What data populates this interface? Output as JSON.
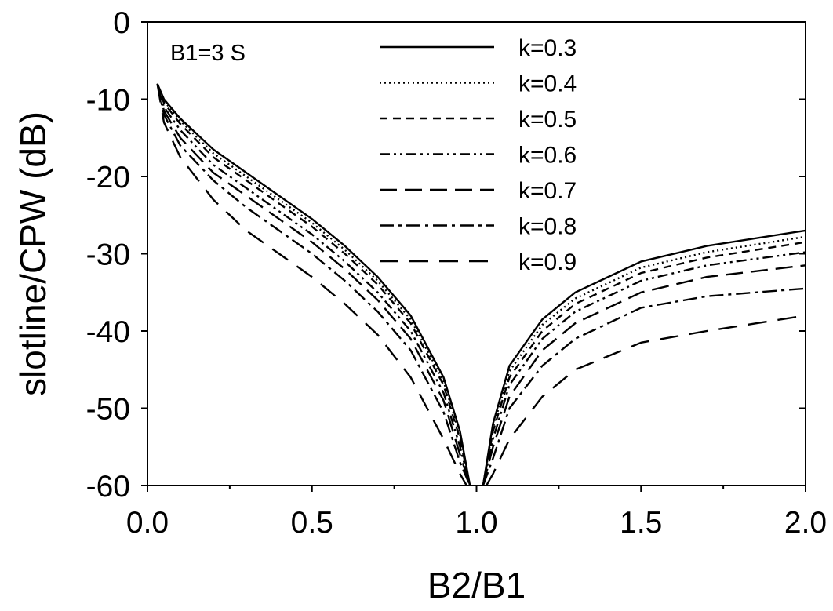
{
  "chart_data": {
    "type": "line",
    "title": "",
    "xlabel": "B2/B1",
    "ylabel": "slotline/CPW (dB)",
    "xlim": [
      0.0,
      2.0
    ],
    "ylim": [
      -60,
      0
    ],
    "xticks": [
      "0.0",
      "0.5",
      "1.0",
      "1.5",
      "2.0"
    ],
    "yticks": [
      "0",
      "-10",
      "-20",
      "-30",
      "-40",
      "-50",
      "-60"
    ],
    "grid": false,
    "legend_position": "top-center",
    "annotation": "B1=3 S",
    "series": [
      {
        "name": "k=0.3",
        "dash": "solid",
        "x": [
          0.03,
          0.05,
          0.1,
          0.2,
          0.3,
          0.4,
          0.5,
          0.6,
          0.7,
          0.8,
          0.9,
          0.95,
          0.98,
          1.02,
          1.05,
          1.1,
          1.2,
          1.3,
          1.5,
          1.7,
          2.0
        ],
        "y": [
          -8,
          -10,
          -12.5,
          -16.5,
          -19.5,
          -22.5,
          -25.5,
          -29,
          -33,
          -38,
          -46,
          -53,
          -60,
          -60,
          -52,
          -44.5,
          -38.5,
          -35,
          -31,
          -29,
          -27
        ]
      },
      {
        "name": "k=0.4",
        "dash": "dotted",
        "x": [
          0.03,
          0.05,
          0.1,
          0.2,
          0.3,
          0.4,
          0.5,
          0.6,
          0.7,
          0.8,
          0.9,
          0.95,
          0.98,
          1.02,
          1.05,
          1.1,
          1.2,
          1.3,
          1.5,
          1.7,
          2.0
        ],
        "y": [
          -8,
          -10.2,
          -12.8,
          -17,
          -20,
          -23,
          -26,
          -29.5,
          -33.5,
          -38.5,
          -46.5,
          -53.5,
          -60,
          -60,
          -52.5,
          -45.2,
          -39.2,
          -35.8,
          -31.8,
          -29.8,
          -27.8
        ]
      },
      {
        "name": "k=0.5",
        "dash": "short-dash",
        "x": [
          0.03,
          0.05,
          0.1,
          0.2,
          0.3,
          0.4,
          0.5,
          0.6,
          0.7,
          0.8,
          0.9,
          0.95,
          0.98,
          1.02,
          1.05,
          1.1,
          1.2,
          1.3,
          1.5,
          1.7,
          2.0
        ],
        "y": [
          -8,
          -10.5,
          -13.2,
          -17.5,
          -20.5,
          -23.5,
          -26.5,
          -30,
          -34,
          -39,
          -47,
          -54,
          -60,
          -60,
          -53,
          -46,
          -40,
          -36.5,
          -32.5,
          -30.5,
          -28.5
        ]
      },
      {
        "name": "k=0.6",
        "dash": "dash-dot-dot",
        "x": [
          0.03,
          0.05,
          0.1,
          0.2,
          0.3,
          0.4,
          0.5,
          0.6,
          0.7,
          0.8,
          0.9,
          0.95,
          0.98,
          1.02,
          1.05,
          1.1,
          1.2,
          1.3,
          1.5,
          1.7,
          2.0
        ],
        "y": [
          -8,
          -11,
          -14,
          -18.5,
          -21.5,
          -24.5,
          -27.5,
          -31,
          -35,
          -40,
          -48,
          -55,
          -60,
          -60,
          -54,
          -47,
          -41,
          -37.5,
          -33.5,
          -31.5,
          -29.8
        ]
      },
      {
        "name": "k=0.7",
        "dash": "long-dash",
        "x": [
          0.03,
          0.05,
          0.1,
          0.2,
          0.3,
          0.4,
          0.5,
          0.6,
          0.7,
          0.8,
          0.9,
          0.95,
          0.98,
          1.02,
          1.05,
          1.1,
          1.2,
          1.3,
          1.5,
          1.7,
          2.0
        ],
        "y": [
          -8,
          -11.5,
          -15,
          -19.5,
          -22.5,
          -25.5,
          -28.5,
          -32,
          -36,
          -41,
          -49,
          -56,
          -60,
          -60,
          -55,
          -48.5,
          -42.5,
          -39,
          -35,
          -33,
          -31.5
        ]
      },
      {
        "name": "k=0.8",
        "dash": "dash-dot",
        "x": [
          0.03,
          0.05,
          0.1,
          0.2,
          0.3,
          0.4,
          0.5,
          0.6,
          0.7,
          0.8,
          0.9,
          0.95,
          0.98,
          1.02,
          1.05,
          1.1,
          1.2,
          1.3,
          1.5,
          1.7,
          2.0
        ],
        "y": [
          -8,
          -12,
          -16,
          -20.5,
          -24,
          -27,
          -30,
          -33.5,
          -37.5,
          -42.5,
          -50.5,
          -57,
          -60,
          -60,
          -56.5,
          -50,
          -44.5,
          -41,
          -37,
          -35.5,
          -34.5
        ]
      },
      {
        "name": "k=0.9",
        "dash": "long-dash-wide",
        "x": [
          0.03,
          0.05,
          0.1,
          0.2,
          0.3,
          0.4,
          0.5,
          0.6,
          0.7,
          0.8,
          0.9,
          0.95,
          0.97,
          1.03,
          1.05,
          1.1,
          1.2,
          1.3,
          1.5,
          1.7,
          2.0
        ],
        "y": [
          -8,
          -13,
          -17.5,
          -23,
          -27,
          -30,
          -33,
          -36.5,
          -40.5,
          -46,
          -54,
          -58.5,
          -60,
          -60,
          -58.5,
          -54,
          -48.5,
          -45,
          -41.5,
          -40,
          -38
        ]
      }
    ]
  }
}
